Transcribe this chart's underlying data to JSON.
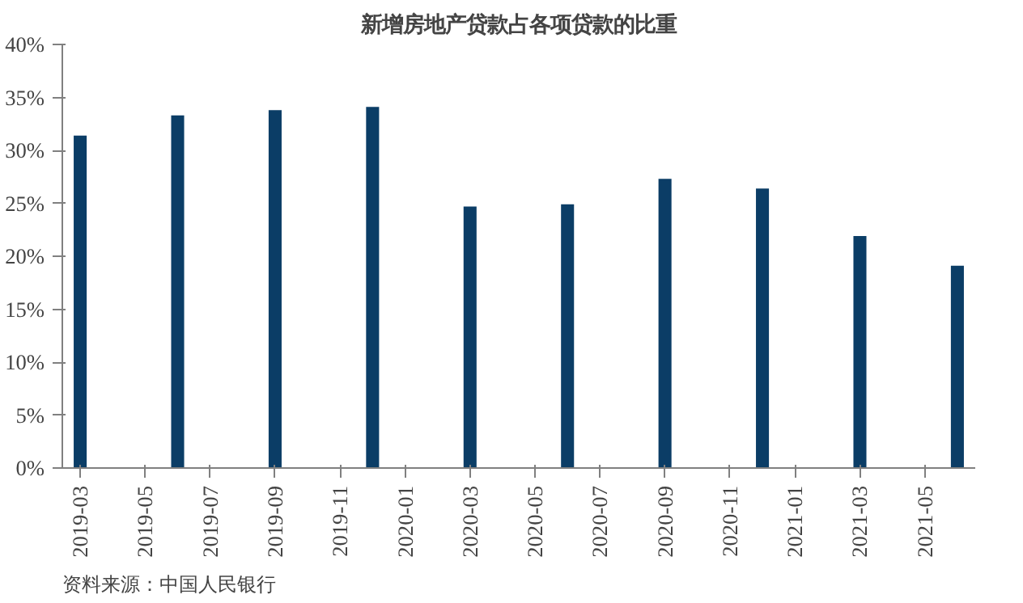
{
  "chart_data": {
    "type": "bar",
    "title": "新增房地产贷款占各项贷款的比重",
    "categories": [
      "2019-03",
      null,
      "2019-05",
      null,
      "2019-07",
      null,
      "2019-09",
      null,
      "2019-11",
      null,
      "2020-01",
      null,
      "2020-03",
      null,
      "2020-05",
      null,
      "2020-07",
      null,
      "2020-09",
      null,
      "2020-11",
      null,
      "2021-01",
      null,
      "2021-03",
      null,
      "2021-05",
      null
    ],
    "values": [
      31.4,
      null,
      null,
      33.3,
      null,
      null,
      33.8,
      null,
      null,
      34.1,
      null,
      null,
      24.7,
      null,
      null,
      24.9,
      null,
      null,
      27.3,
      null,
      null,
      26.4,
      null,
      null,
      21.9,
      null,
      null,
      19.1
    ],
    "color": "#0b3d66",
    "ylim": [
      0,
      40
    ],
    "yticks": [
      {
        "value": 0,
        "label": "0%"
      },
      {
        "value": 5,
        "label": "5%"
      },
      {
        "value": 10,
        "label": "10%"
      },
      {
        "value": 15,
        "label": "15%"
      },
      {
        "value": 20,
        "label": "20%"
      },
      {
        "value": 25,
        "label": "25%"
      },
      {
        "value": 30,
        "label": "30%"
      },
      {
        "value": 35,
        "label": "35%"
      },
      {
        "value": 40,
        "label": "40%"
      }
    ],
    "grid": false,
    "annotations": [
      "资料来源：中国人民银行"
    ]
  }
}
